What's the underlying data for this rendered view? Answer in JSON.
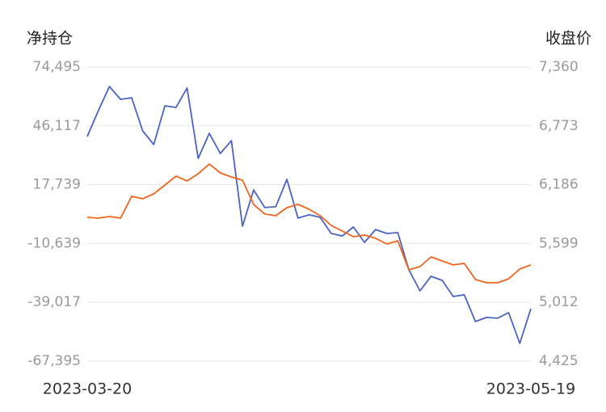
{
  "chart_data": {
    "type": "line",
    "y_label": "净持仓",
    "y2_label": "收盘价",
    "categories": [
      "2023-03-20",
      null,
      null,
      null,
      null,
      null,
      null,
      null,
      null,
      null,
      null,
      null,
      null,
      null,
      null,
      null,
      null,
      null,
      null,
      null,
      null,
      null,
      null,
      null,
      null,
      null,
      null,
      null,
      null,
      null,
      null,
      null,
      null,
      null,
      null,
      null,
      null,
      null,
      null,
      null,
      "2023-05-19"
    ],
    "series": [
      {
        "color": "#4a63c4",
        "values": [
          41000,
          53400,
          65100,
          58900,
          59700,
          43700,
          37100,
          55800,
          55000,
          64400,
          30400,
          42500,
          32800,
          39000,
          -2300,
          15200,
          6700,
          7100,
          20300,
          1600,
          3200,
          2000,
          -5800,
          -7000,
          -2700,
          -10100,
          -3900,
          -5800,
          -5400,
          -23300,
          -33500,
          -26500,
          -28400,
          -36200,
          -35400,
          -48300,
          -46300,
          -46700,
          -44000,
          -58800,
          -42100
        ]
      },
      {
        "color": "#f0641e",
        "axis": "y2",
        "values": [
          5860,
          5852,
          5868,
          5852,
          6070,
          6046,
          6094,
          6183,
          6271,
          6223,
          6296,
          6392,
          6304,
          6263,
          6231,
          5989,
          5893,
          5876,
          5957,
          5989,
          5941,
          5876,
          5780,
          5723,
          5667,
          5683,
          5651,
          5594,
          5626,
          5336,
          5368,
          5465,
          5425,
          5385,
          5401,
          5239,
          5207,
          5207,
          5247,
          5344,
          5385
        ]
      }
    ],
    "ylim": [
      -67395,
      74495
    ],
    "yticks": [
      {
        "value": -67395,
        "label": "-67,395"
      },
      {
        "value": -39017,
        "label": "-39,017"
      },
      {
        "value": -10639,
        "label": "-10,639"
      },
      {
        "value": 17739,
        "label": "17,739"
      },
      {
        "value": 46117,
        "label": "46,117"
      },
      {
        "value": 74495,
        "label": "74,495"
      }
    ],
    "y2lim": [
      4425,
      7360
    ],
    "y2ticks": [
      {
        "value": 4425,
        "label": "4,425"
      },
      {
        "value": 5012,
        "label": "5,012"
      },
      {
        "value": 5599,
        "label": "5,599"
      },
      {
        "value": 6186,
        "label": "6,186"
      },
      {
        "value": 6773,
        "label": "6,773"
      },
      {
        "value": 7360,
        "label": "7,360"
      }
    ],
    "grid": true
  }
}
